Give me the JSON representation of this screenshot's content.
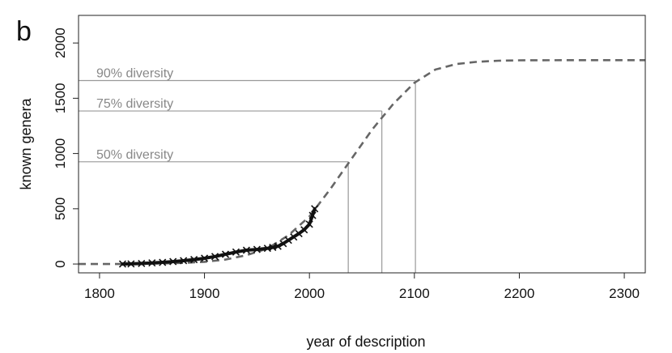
{
  "panel_label": "b",
  "chart_data": {
    "type": "line",
    "xlabel": "year of description",
    "ylabel": "known genera",
    "xlim": [
      1780,
      2320
    ],
    "ylim": [
      -80,
      2250
    ],
    "xticks": [
      1800,
      1900,
      2000,
      2100,
      2200,
      2300
    ],
    "yticks": [
      0,
      500,
      1000,
      1500,
      2000
    ],
    "grid": false,
    "colors": {
      "observed": "#111111",
      "fitted": "#666666",
      "annotation": "#999999"
    },
    "series": [
      {
        "style": "observed-crosses",
        "x": [
          1822,
          1830,
          1840,
          1850,
          1860,
          1870,
          1880,
          1890,
          1900,
          1910,
          1920,
          1930,
          1940,
          1950,
          1960,
          1965,
          1970,
          1975,
          1980,
          1985,
          1990,
          1995,
          2000,
          2003,
          2005
        ],
        "y": [
          0,
          1,
          5,
          10,
          15,
          22,
          30,
          40,
          52,
          68,
          88,
          108,
          125,
          132,
          142,
          150,
          160,
          185,
          215,
          245,
          275,
          310,
          360,
          440,
          500
        ]
      },
      {
        "style": "fitted-dashed",
        "x": [
          1780,
          1800,
          1820,
          1840,
          1860,
          1880,
          1900,
          1920,
          1940,
          1960,
          1980,
          2000,
          2020,
          2040,
          2060,
          2080,
          2100,
          2120,
          2140,
          2160,
          2180,
          2200,
          2250,
          2320
        ],
        "y": [
          0,
          0,
          0,
          2,
          5,
          10,
          20,
          40,
          80,
          140,
          260,
          430,
          680,
          950,
          1220,
          1450,
          1640,
          1760,
          1810,
          1830,
          1840,
          1843,
          1845,
          1845
        ]
      }
    ],
    "annotations": [
      {
        "label": "50% diversity",
        "y": 925,
        "x": 2037
      },
      {
        "label": "75% diversity",
        "y": 1385,
        "x": 2069
      },
      {
        "label": "90% diversity",
        "y": 1660,
        "x": 2101
      }
    ]
  }
}
